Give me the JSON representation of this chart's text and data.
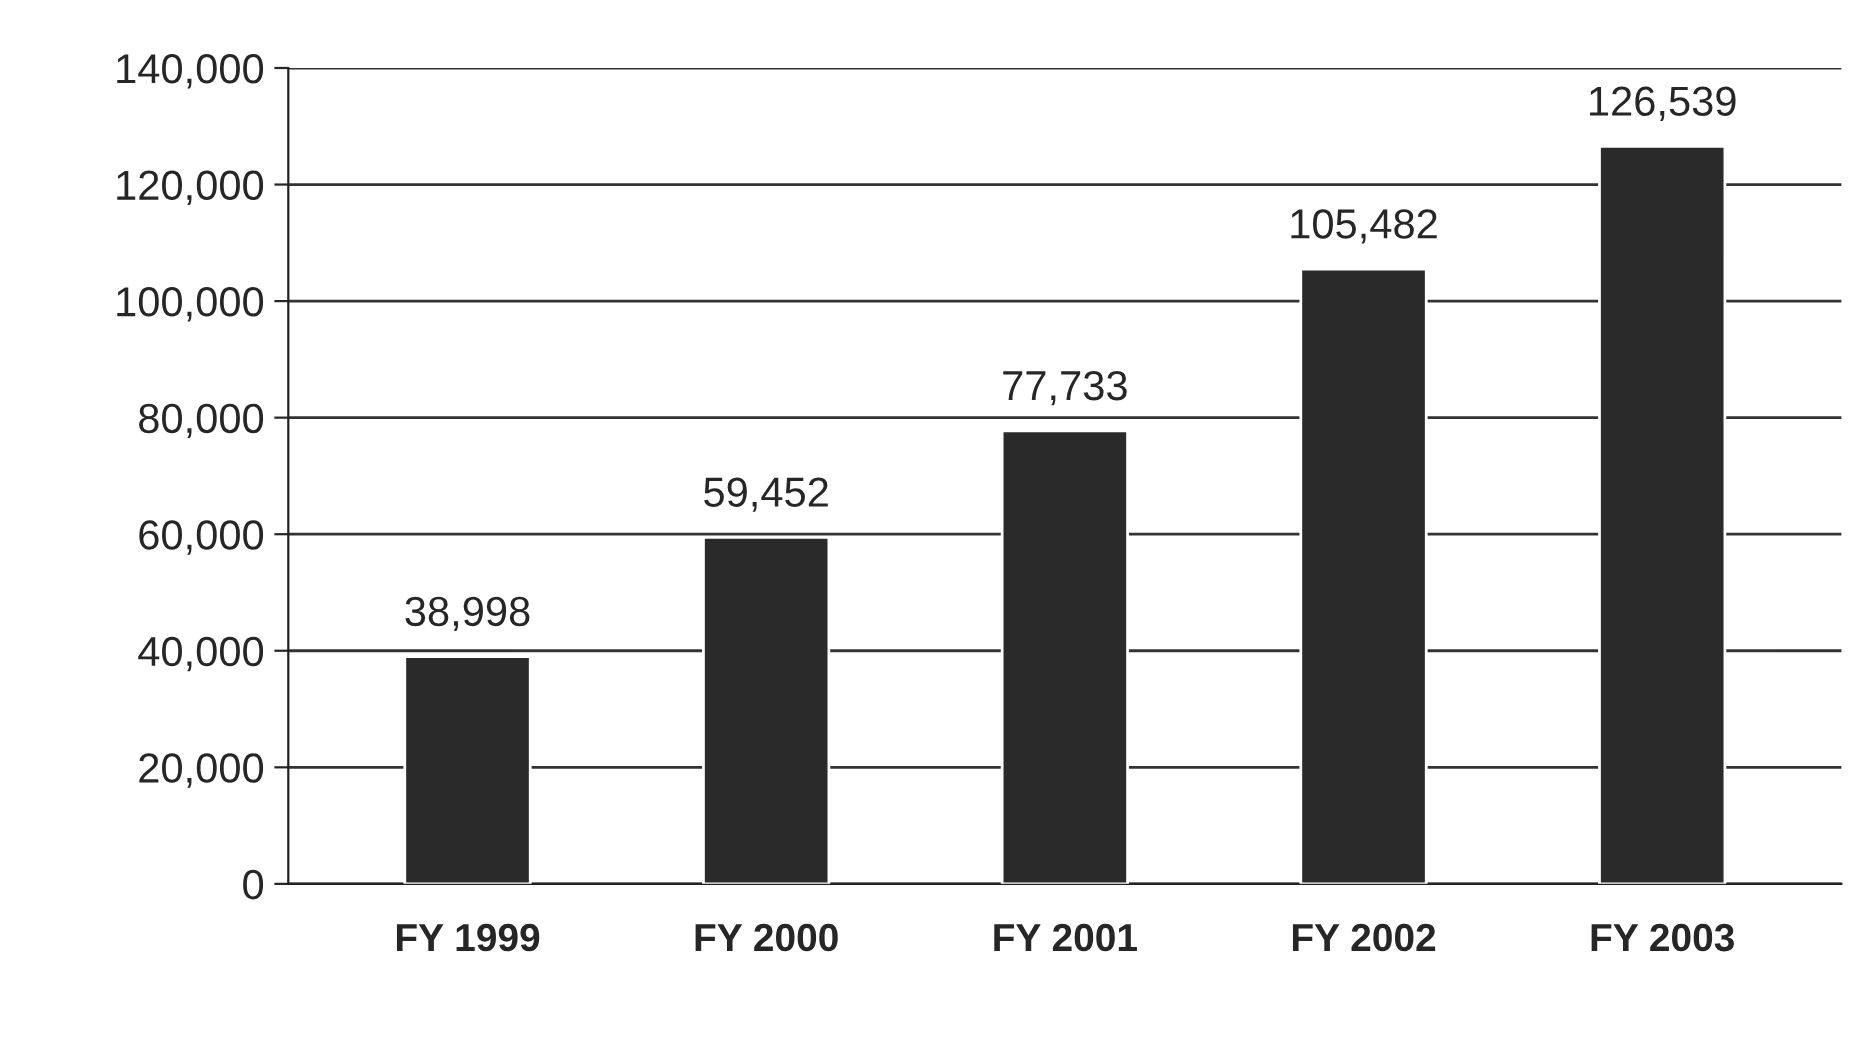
{
  "chart_data": {
    "type": "bar",
    "categories": [
      "FY 1999",
      "FY 2000",
      "FY 2001",
      "FY 2002",
      "FY 2003"
    ],
    "values": [
      38998,
      59452,
      77733,
      105482,
      126539
    ],
    "value_labels": [
      "38,998",
      "59,452",
      "77,733",
      "105,482",
      "126,539"
    ],
    "color": "#2a2a2a",
    "ylim": [
      0,
      140000
    ],
    "yticks": [
      {
        "value": 0,
        "label": "0"
      },
      {
        "value": 20000,
        "label": "20,000"
      },
      {
        "value": 40000,
        "label": "40,000"
      },
      {
        "value": 60000,
        "label": "60,000"
      },
      {
        "value": 80000,
        "label": "80,000"
      },
      {
        "value": 100000,
        "label": "100,000"
      },
      {
        "value": 120000,
        "label": "120,000"
      },
      {
        "value": 140000,
        "label": "140,000"
      }
    ],
    "grid": "y",
    "legend": false
  }
}
